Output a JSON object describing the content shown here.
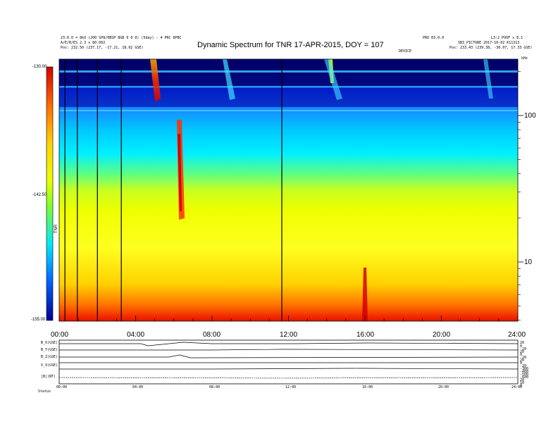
{
  "header": {
    "title": "Dynamic Spectrum for TNR 17-APR-2015, DOY = 107",
    "left_line1": "23:0.0 = 8kV (200 SP8/0BSP 8GB 0 0 0) (5day) - 4 PRC 8PBC",
    "left_line2": "A/E/R/ES 2.3 x 80.002",
    "left_line3": "Pos:   232.50 (237.17, -17.21, 18.02 GSE)",
    "right_line1": "PRO 83.0.0",
    "right_line2": "L3:2 POOF x 8.1",
    "right_line3": "SB3_PICTURE  2017-10-02  K11313",
    "right_line4": "Pos:   233.43 (239.38, -30.07, 17.33 GSE)",
    "marker_label": "DEVICE"
  },
  "colorbar": {
    "label": "TNR",
    "max_label": "-130.00",
    "mid_label": "-142.50",
    "min_label": "-155.00"
  },
  "chart_data": {
    "type": "heatmap",
    "title": "Dynamic Spectrum for TNR 17-APR-2015, DOY = 107",
    "x_ticks": [
      "00:00",
      "04:00",
      "08:00",
      "12:00",
      "16:00",
      "20:00",
      "24:00"
    ],
    "x_range_hours": [
      0,
      24
    ],
    "y_scale": "log",
    "y_ticks": [
      10,
      100
    ],
    "y_unit": "kHz",
    "color_range": [
      -155.0,
      -130.0
    ],
    "color_ticks": [
      -130.0,
      -142.5,
      -155.0
    ],
    "vertical_lines_hours": [
      0.3,
      0.95,
      2.0,
      3.25,
      11.65
    ]
  },
  "panels": {
    "labels": [
      "B_X(GSE)",
      "B_Y(GSE)",
      "B_Z(GSE)",
      "V_X(GSE)",
      "|B|(NT)"
    ],
    "right_values": [
      "20",
      "0",
      "-20",
      "20",
      "0",
      "-20",
      "20",
      "0",
      "-20",
      "-300",
      "-400",
      "-500",
      "-600",
      "20",
      "10",
      "0"
    ],
    "x_ticks": [
      "00:00",
      "04:00",
      "08:00",
      "12:00",
      "16:00",
      "20:00",
      "24:00"
    ],
    "footer_label": "Status"
  },
  "colors": {
    "background": "#ffffff",
    "axis": "#000000",
    "accent_burst": "#d40000"
  }
}
